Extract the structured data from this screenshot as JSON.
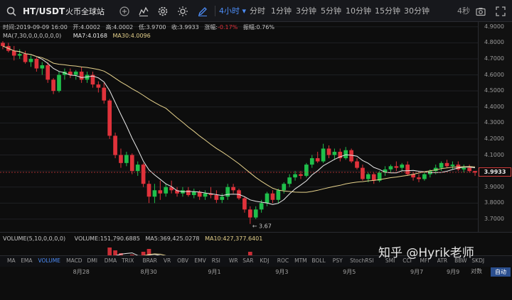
{
  "header": {
    "pair": "HT/USDT",
    "exchange": "火币全球站",
    "intervals": [
      {
        "label": "4小时",
        "active": true
      },
      {
        "label": "分时",
        "active": false
      },
      {
        "label": "1分钟",
        "active": false
      },
      {
        "label": "3分钟",
        "active": false
      },
      {
        "label": "5分钟",
        "active": false
      },
      {
        "label": "10分钟",
        "active": false
      },
      {
        "label": "15分钟",
        "active": false
      },
      {
        "label": "30分钟",
        "active": false
      }
    ],
    "countdown": "4秒"
  },
  "ohlc": {
    "time_label": "时间:2019-09-09 16:00",
    "open_label": "开:4.0002",
    "high_label": "高:4.0002",
    "low_label": "低:3.9700",
    "close_label": "收:3.9933",
    "change_label": "涨幅:",
    "change_value": "-0.17%",
    "amplitude_label": "振幅:0.76%"
  },
  "ma": {
    "label": "MA(7,30,0,0,0,0,0,0)",
    "ma7": "MA7:4.0168",
    "ma30": "MA30:4.0096"
  },
  "volume": {
    "label": "VOLUME(5,10,0,0,0,0)",
    "value": "VOLUME:151,790.6885",
    "ma5": "MA5:369,425.0278",
    "ma10": "MA10:427,377.6401"
  },
  "price_axis": [
    "4.9000",
    "4.8000",
    "4.7000",
    "4.6000",
    "4.5000",
    "4.4000",
    "4.3000",
    "4.2000",
    "4.1000",
    "4.0000",
    "3.9000",
    "3.8000",
    "3.7000"
  ],
  "last_price": "3.9933",
  "low_marker": "3.67",
  "indicators": [
    "MA",
    "EMA",
    "VOLUME",
    "MACD",
    "DMI",
    "DMA",
    "TRIX",
    "BRAR",
    "VR",
    "OBV",
    "EMV",
    "RSI",
    "WR",
    "SAR",
    "KDJ",
    "ROC",
    "MTM",
    "BOLL",
    "PSY",
    "StochRSI",
    "SMI",
    "CCI",
    "MFI",
    "ATR",
    "BBW",
    "SKDJ"
  ],
  "active_indicator": "VOLUME",
  "dates": [
    "8月28",
    "8月30",
    "9月1",
    "9月3",
    "9月5",
    "9月7",
    "9月9"
  ],
  "log_label": "对数",
  "auto_label": "自动",
  "watermark": "知乎 @Hyrik老师",
  "colors": {
    "up": "#1fbf4b",
    "down": "#e0323b",
    "ma7": "#e9e9e9",
    "ma30": "#e6d28c",
    "accent": "#4d8df7",
    "background": "#0d0d0d"
  },
  "chart_data": {
    "type": "candlestick",
    "interval": "4h",
    "ylim": [
      3.62,
      4.93
    ],
    "candles": [
      [
        4.8,
        4.81,
        4.76,
        4.78
      ],
      [
        4.78,
        4.8,
        4.74,
        4.75
      ],
      [
        4.75,
        4.78,
        4.69,
        4.72
      ],
      [
        4.72,
        4.76,
        4.7,
        4.73
      ],
      [
        4.73,
        4.75,
        4.67,
        4.68
      ],
      [
        4.68,
        4.72,
        4.65,
        4.7
      ],
      [
        4.7,
        4.71,
        4.62,
        4.64
      ],
      [
        4.64,
        4.68,
        4.6,
        4.66
      ],
      [
        4.66,
        4.68,
        4.55,
        4.57
      ],
      [
        4.57,
        4.58,
        4.48,
        4.5
      ],
      [
        4.5,
        4.62,
        4.49,
        4.6
      ],
      [
        4.6,
        4.64,
        4.57,
        4.62
      ],
      [
        4.62,
        4.64,
        4.58,
        4.6
      ],
      [
        4.6,
        4.63,
        4.57,
        4.62
      ],
      [
        4.62,
        4.65,
        4.55,
        4.57
      ],
      [
        4.57,
        4.62,
        4.55,
        4.6
      ],
      [
        4.6,
        4.62,
        4.52,
        4.54
      ],
      [
        4.54,
        4.56,
        4.49,
        4.52
      ],
      [
        4.52,
        4.55,
        4.42,
        4.44
      ],
      [
        4.44,
        4.45,
        4.2,
        4.22
      ],
      [
        4.22,
        4.24,
        4.08,
        4.1
      ],
      [
        4.1,
        4.14,
        4.02,
        4.05
      ],
      [
        4.05,
        4.12,
        4.03,
        4.1
      ],
      [
        4.1,
        4.11,
        3.98,
        4.0
      ],
      [
        4.0,
        4.06,
        3.97,
        4.04
      ],
      [
        4.04,
        4.05,
        3.9,
        3.92
      ],
      [
        3.92,
        3.94,
        3.8,
        3.84
      ],
      [
        3.84,
        3.92,
        3.8,
        3.88
      ],
      [
        3.88,
        3.94,
        3.82,
        3.86
      ],
      [
        3.86,
        3.92,
        3.84,
        3.9
      ],
      [
        3.9,
        3.94,
        3.86,
        3.88
      ],
      [
        3.88,
        3.9,
        3.84,
        3.86
      ],
      [
        3.86,
        3.9,
        3.84,
        3.88
      ],
      [
        3.88,
        3.9,
        3.84,
        3.85
      ],
      [
        3.85,
        3.89,
        3.83,
        3.87
      ],
      [
        3.87,
        3.88,
        3.82,
        3.84
      ],
      [
        3.84,
        3.88,
        3.82,
        3.86
      ],
      [
        3.86,
        3.9,
        3.83,
        3.85
      ],
      [
        3.85,
        3.88,
        3.8,
        3.82
      ],
      [
        3.82,
        3.86,
        3.8,
        3.84
      ],
      [
        3.84,
        3.92,
        3.82,
        3.9
      ],
      [
        3.9,
        3.92,
        3.86,
        3.88
      ],
      [
        3.88,
        3.89,
        3.82,
        3.83
      ],
      [
        3.83,
        3.84,
        3.74,
        3.76
      ],
      [
        3.76,
        3.78,
        3.67,
        3.71
      ],
      [
        3.71,
        3.78,
        3.7,
        3.76
      ],
      [
        3.76,
        3.82,
        3.74,
        3.8
      ],
      [
        3.8,
        3.87,
        3.78,
        3.86
      ],
      [
        3.86,
        3.88,
        3.8,
        3.82
      ],
      [
        3.82,
        3.89,
        3.8,
        3.88
      ],
      [
        3.88,
        3.93,
        3.86,
        3.92
      ],
      [
        3.92,
        3.98,
        3.9,
        3.96
      ],
      [
        3.96,
        4.0,
        3.94,
        3.98
      ],
      [
        3.98,
        4.0,
        3.95,
        3.97
      ],
      [
        3.97,
        4.05,
        3.96,
        4.04
      ],
      [
        4.04,
        4.1,
        4.02,
        4.08
      ],
      [
        4.08,
        4.12,
        4.05,
        4.06
      ],
      [
        4.06,
        4.17,
        4.05,
        4.14
      ],
      [
        4.14,
        4.16,
        4.08,
        4.1
      ],
      [
        4.1,
        4.14,
        4.07,
        4.12
      ],
      [
        4.12,
        4.14,
        4.06,
        4.08
      ],
      [
        4.08,
        4.15,
        4.07,
        4.13
      ],
      [
        4.13,
        4.14,
        4.05,
        4.06
      ],
      [
        4.06,
        4.08,
        4.01,
        4.02
      ],
      [
        4.02,
        4.04,
        3.94,
        3.95
      ],
      [
        3.95,
        3.99,
        3.93,
        3.98
      ],
      [
        3.98,
        3.99,
        3.92,
        3.94
      ],
      [
        3.94,
        4.0,
        3.93,
        3.99
      ],
      [
        3.99,
        4.03,
        3.97,
        4.01
      ],
      [
        4.01,
        4.04,
        3.99,
        4.03
      ],
      [
        4.03,
        4.06,
        4.0,
        4.02
      ],
      [
        4.02,
        4.05,
        4.0,
        4.04
      ],
      [
        4.04,
        4.06,
        3.97,
        3.98
      ],
      [
        3.98,
        3.99,
        3.94,
        3.96
      ],
      [
        3.96,
        3.98,
        3.93,
        3.95
      ],
      [
        3.95,
        3.99,
        3.94,
        3.98
      ],
      [
        3.98,
        4.01,
        3.96,
        4.0
      ],
      [
        4.0,
        4.04,
        3.98,
        4.02
      ],
      [
        4.02,
        4.06,
        4.0,
        4.05
      ],
      [
        4.05,
        4.07,
        4.02,
        4.03
      ],
      [
        4.03,
        4.06,
        4.01,
        4.04
      ],
      [
        4.04,
        4.06,
        4.0,
        4.01
      ],
      [
        4.01,
        4.04,
        3.99,
        4.02
      ],
      [
        4.02,
        4.04,
        3.99,
        4.0
      ],
      [
        4.0,
        4.0,
        3.97,
        3.99
      ]
    ],
    "volumes": [
      0.3,
      0.25,
      0.35,
      0.28,
      0.4,
      0.32,
      0.45,
      0.38,
      0.55,
      0.7,
      0.5,
      0.42,
      0.35,
      0.38,
      0.45,
      0.4,
      0.52,
      0.48,
      0.65,
      1.0,
      0.9,
      0.8,
      0.6,
      0.75,
      0.55,
      0.85,
      0.95,
      0.7,
      0.55,
      0.5,
      0.45,
      0.4,
      0.38,
      0.42,
      0.36,
      0.4,
      0.35,
      0.38,
      0.48,
      0.4,
      0.55,
      0.42,
      0.5,
      0.7,
      0.85,
      0.6,
      0.55,
      0.62,
      0.48,
      0.58,
      0.6,
      0.55,
      0.5,
      0.45,
      0.62,
      0.68,
      0.5,
      0.72,
      0.55,
      0.48,
      0.45,
      0.52,
      0.5,
      0.48,
      0.62,
      0.4,
      0.45,
      0.42,
      0.4,
      0.38,
      0.35,
      0.36,
      0.45,
      0.4,
      0.35,
      0.32,
      0.3,
      0.34,
      0.36,
      0.32,
      0.3,
      0.34,
      0.3,
      0.28,
      0.22
    ],
    "date_labels": [
      "8月28",
      "8月30",
      "9月1",
      "9月3",
      "9月5",
      "9月7",
      "9月9"
    ]
  }
}
